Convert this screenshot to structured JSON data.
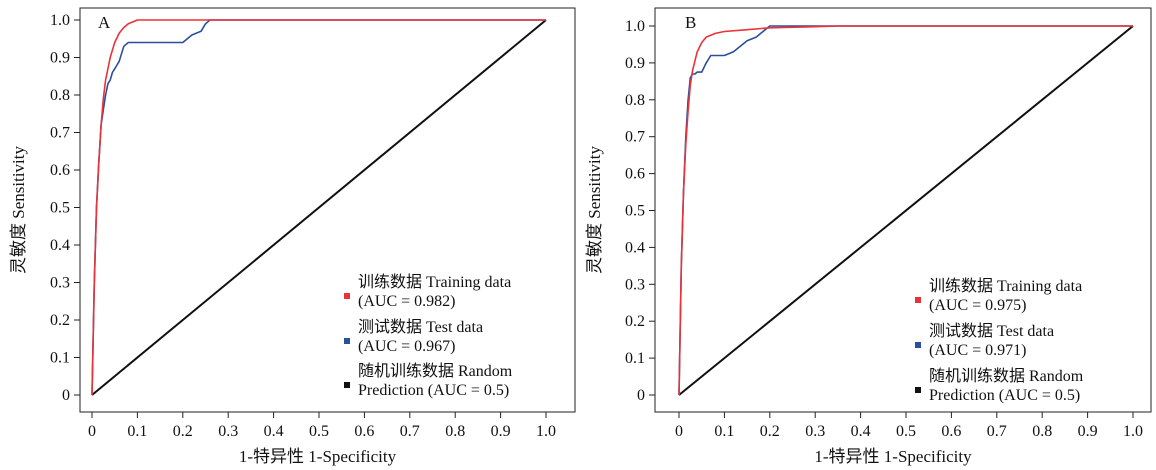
{
  "chart_data": [
    {
      "type": "line",
      "panel_label": "A",
      "xlabel": "1-特异性 1-Specificity",
      "ylabel": "灵敏度 Sensitivity",
      "xlim": [
        0,
        1
      ],
      "ylim": [
        0,
        1
      ],
      "x_ticks": [
        "0",
        "0.1",
        "0.2",
        "0.3",
        "0.4",
        "0.5",
        "0.6",
        "0.7",
        "0.8",
        "0.9",
        "1.0"
      ],
      "y_ticks": [
        "0",
        "0.1",
        "0.2",
        "0.3",
        "0.4",
        "0.5",
        "0.6",
        "0.7",
        "0.8",
        "0.9",
        "1.0"
      ],
      "grid": false,
      "legend_position": "bottom-right",
      "series": [
        {
          "legend_line1": "训练数据 Training data",
          "legend_line2": "(AUC = 0.982)",
          "color": "#e8333a",
          "x": [
            0,
            0.005,
            0.01,
            0.015,
            0.02,
            0.025,
            0.03,
            0.04,
            0.05,
            0.06,
            0.07,
            0.08,
            0.09,
            0.1,
            0.12,
            0.15,
            0.2,
            0.25,
            1.0
          ],
          "y": [
            0,
            0.3,
            0.5,
            0.62,
            0.72,
            0.79,
            0.84,
            0.9,
            0.94,
            0.965,
            0.98,
            0.99,
            0.995,
            1.0,
            1.0,
            1.0,
            1.0,
            1.0,
            1.0
          ]
        },
        {
          "legend_line1": "测试数据 Test data",
          "legend_line2": "(AUC = 0.967)",
          "color": "#2a4f9e",
          "x": [
            0,
            0.005,
            0.01,
            0.015,
            0.02,
            0.025,
            0.03,
            0.035,
            0.04,
            0.045,
            0.05,
            0.055,
            0.06,
            0.065,
            0.07,
            0.08,
            0.1,
            0.2,
            0.21,
            0.22,
            0.24,
            0.25,
            0.26,
            0.27,
            1.0
          ],
          "y": [
            0,
            0.3,
            0.5,
            0.62,
            0.72,
            0.76,
            0.8,
            0.83,
            0.84,
            0.86,
            0.87,
            0.88,
            0.89,
            0.91,
            0.93,
            0.94,
            0.94,
            0.94,
            0.95,
            0.96,
            0.97,
            0.99,
            1.0,
            1.0,
            1.0
          ]
        },
        {
          "legend_line1": "随机训练数据 Random",
          "legend_line2": "Prediction (AUC = 0.5)",
          "color": "#111111",
          "x": [
            0,
            1
          ],
          "y": [
            0,
            1
          ]
        }
      ]
    },
    {
      "type": "line",
      "panel_label": "B",
      "xlabel": "1-特异性 1-Specificity",
      "ylabel": "灵敏度 Sensitivity",
      "xlim": [
        0,
        1
      ],
      "ylim": [
        0,
        1
      ],
      "x_ticks": [
        "0",
        "0.1",
        "0.2",
        "0.3",
        "0.4",
        "0.5",
        "0.6",
        "0.7",
        "0.8",
        "0.9",
        "1.0"
      ],
      "y_ticks": [
        "0",
        "0.1",
        "0.2",
        "0.3",
        "0.4",
        "0.5",
        "0.6",
        "0.7",
        "0.8",
        "0.9",
        "1.0"
      ],
      "grid": false,
      "legend_position": "bottom-right",
      "series": [
        {
          "legend_line1": "训练数据 Training data",
          "legend_line2": "(AUC = 0.975)",
          "color": "#e8333a",
          "x": [
            0,
            0.005,
            0.01,
            0.015,
            0.02,
            0.025,
            0.03,
            0.04,
            0.05,
            0.06,
            0.08,
            0.1,
            0.15,
            0.2,
            0.3,
            0.35,
            1.0
          ],
          "y": [
            0,
            0.35,
            0.55,
            0.68,
            0.77,
            0.84,
            0.88,
            0.93,
            0.955,
            0.97,
            0.98,
            0.985,
            0.99,
            0.995,
            0.998,
            1.0,
            1.0
          ]
        },
        {
          "legend_line1": "测试数据 Test data",
          "legend_line2": "(AUC = 0.971)",
          "color": "#2a4f9e",
          "x": [
            0,
            0.005,
            0.01,
            0.015,
            0.02,
            0.025,
            0.03,
            0.035,
            0.04,
            0.05,
            0.06,
            0.07,
            0.1,
            0.12,
            0.14,
            0.15,
            0.17,
            0.18,
            0.2,
            0.22,
            0.3,
            1.0
          ],
          "y": [
            0,
            0.35,
            0.55,
            0.7,
            0.8,
            0.86,
            0.87,
            0.87,
            0.875,
            0.875,
            0.9,
            0.92,
            0.92,
            0.93,
            0.95,
            0.96,
            0.97,
            0.98,
            1.0,
            1.0,
            1.0,
            1.0
          ]
        },
        {
          "legend_line1": "随机训练数据 Random",
          "legend_line2": "Prediction (AUC = 0.5)",
          "color": "#111111",
          "x": [
            0,
            1
          ],
          "y": [
            0,
            1
          ]
        }
      ]
    }
  ]
}
